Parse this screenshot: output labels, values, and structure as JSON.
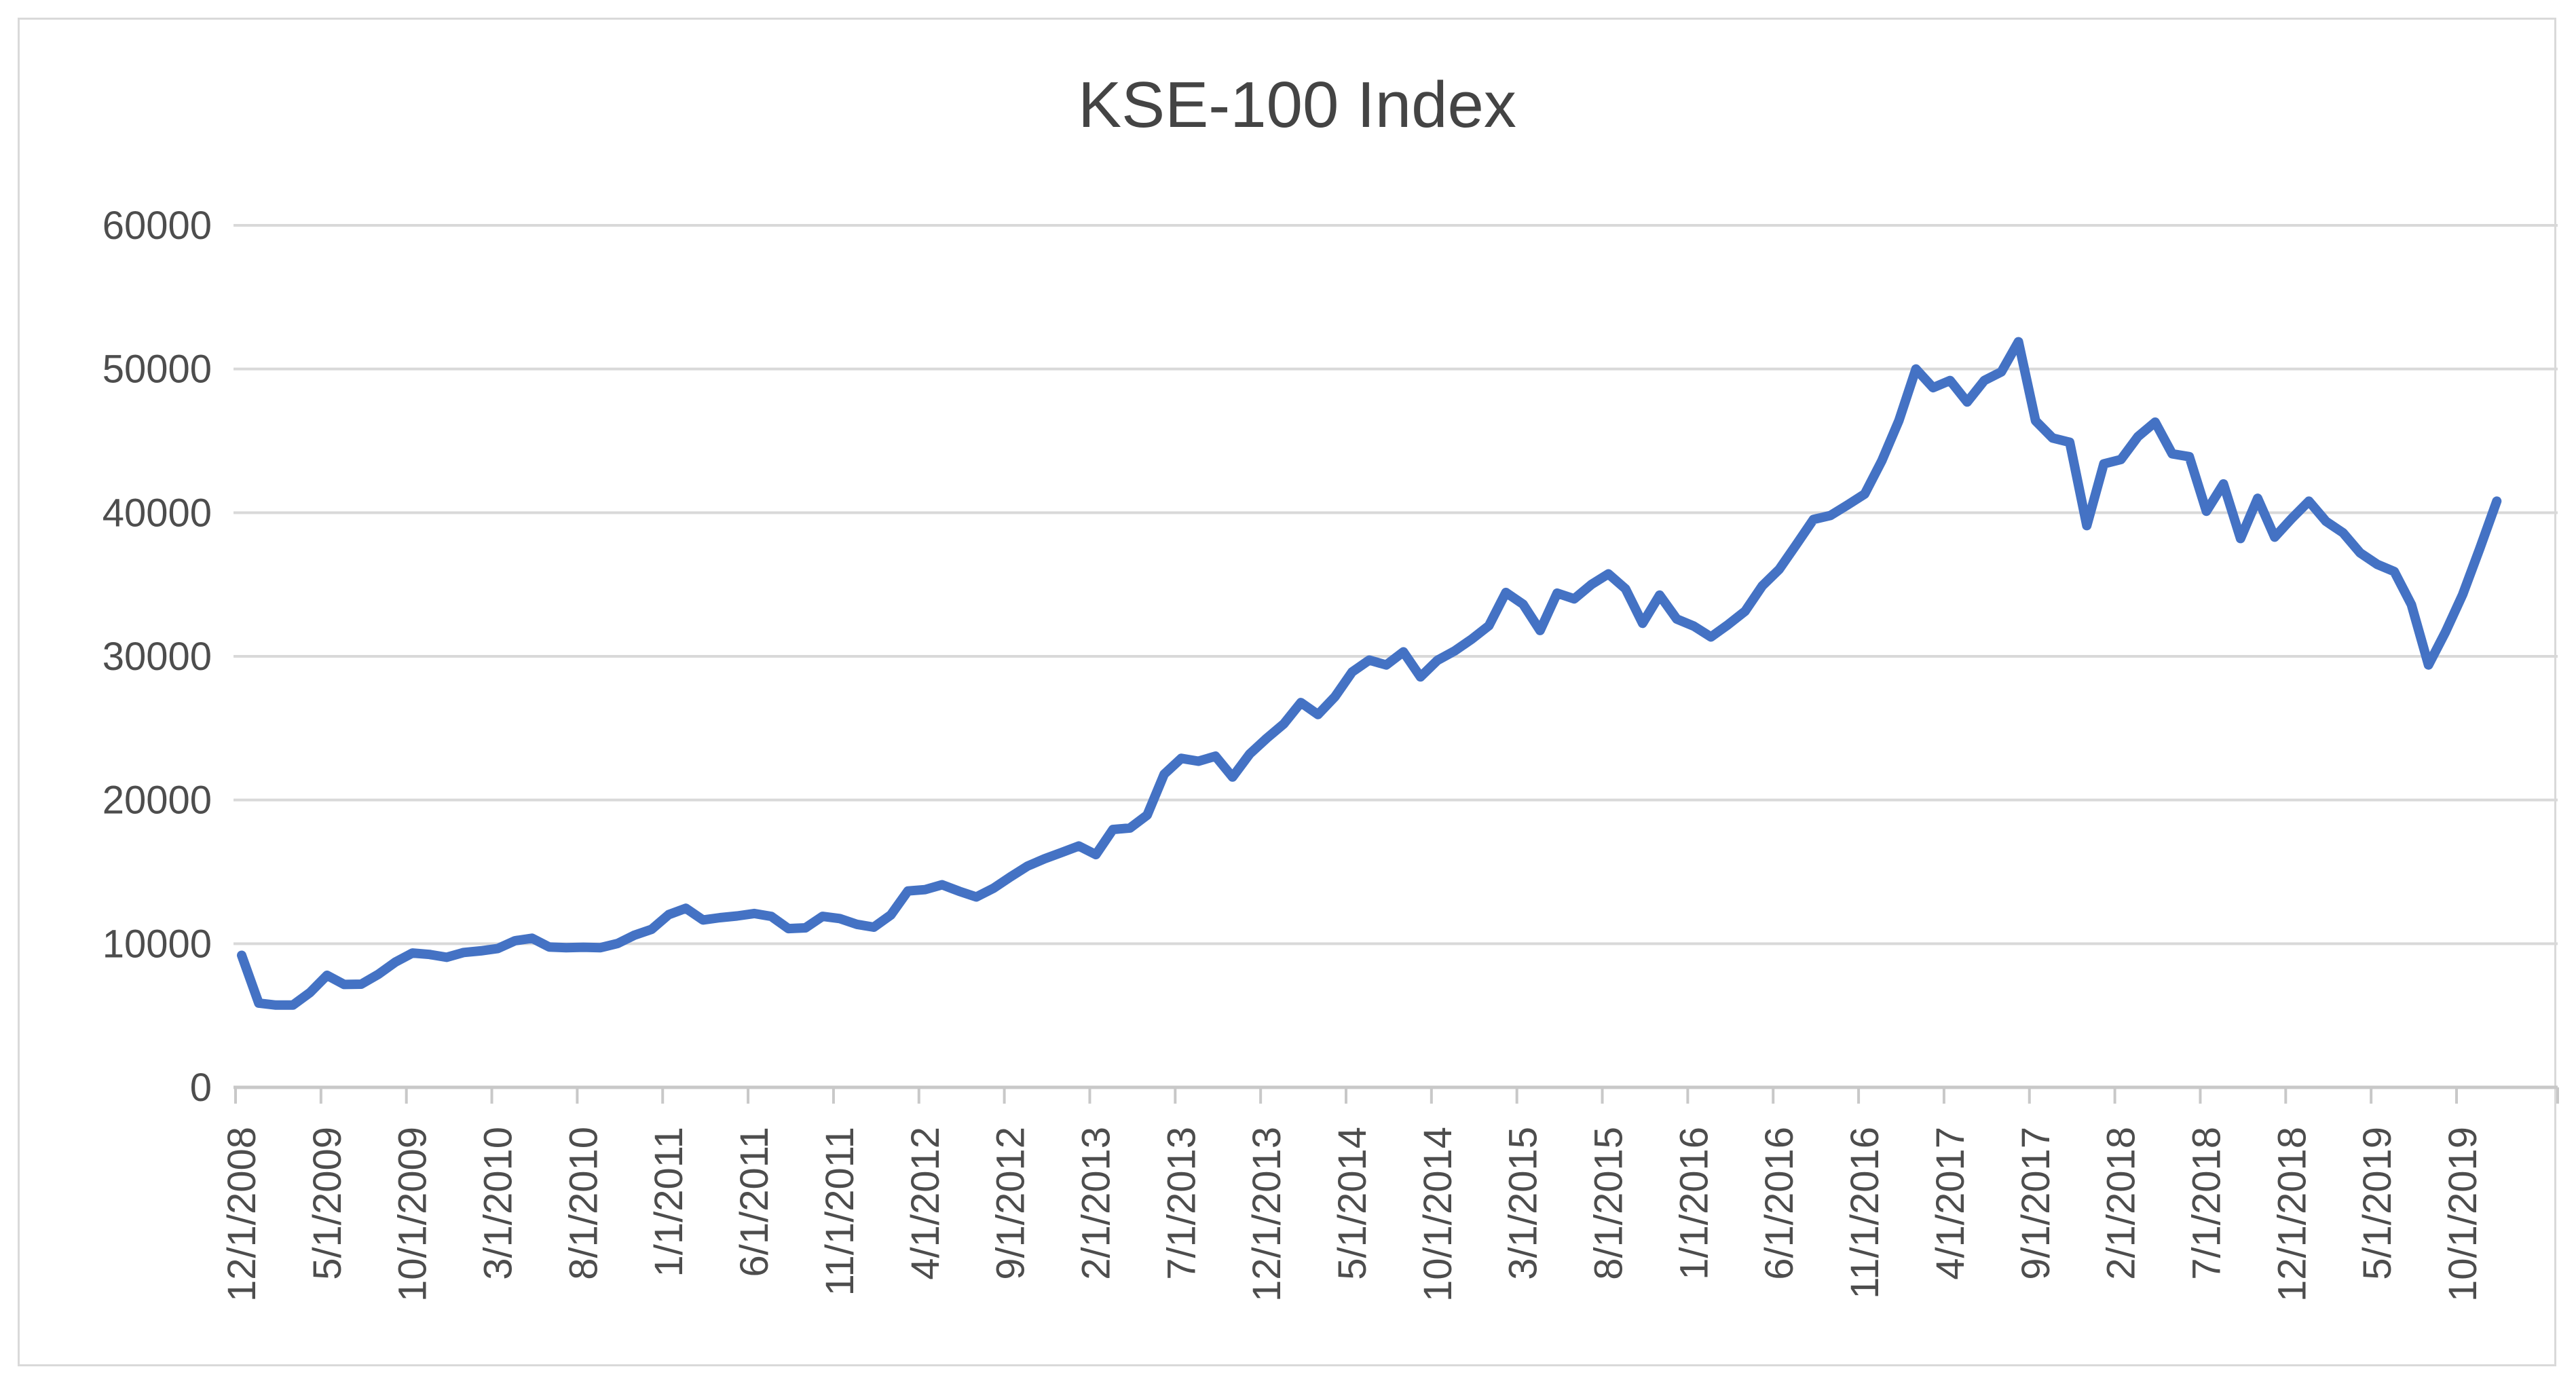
{
  "title": "KSE-100 Index",
  "colors": {
    "line": "#4472C4",
    "gridline": "#d9d9d9",
    "axis_line": "#c8c8c8",
    "tick_mark": "#c8c8c8",
    "text": "#4d4d4d",
    "title_text": "#444444",
    "background": "#ffffff",
    "frame_border": "#d9d9d9"
  },
  "chart_data": {
    "type": "line",
    "title": "KSE-100 Index",
    "xlabel": "",
    "ylabel": "",
    "ylim": [
      0,
      60000
    ],
    "yticks": [
      0,
      10000,
      20000,
      30000,
      40000,
      50000,
      60000
    ],
    "grid": "horizontal",
    "legend": "none",
    "xtick_labels": [
      "12/1/2008",
      "5/1/2009",
      "10/1/2009",
      "3/1/2010",
      "8/1/2010",
      "1/1/2011",
      "6/1/2011",
      "11/1/2011",
      "4/1/2012",
      "9/1/2012",
      "2/1/2013",
      "7/1/2013",
      "12/1/2013",
      "5/1/2014",
      "10/1/2014",
      "3/1/2015",
      "8/1/2015",
      "1/1/2016",
      "6/1/2016",
      "11/1/2016",
      "4/1/2017",
      "9/1/2017",
      "2/1/2018",
      "7/1/2018",
      "12/1/2018",
      "5/1/2019",
      "10/1/2019"
    ],
    "xtick_interval_months": 5,
    "x": [
      "12/1/2008",
      "1/1/2009",
      "2/1/2009",
      "3/1/2009",
      "4/1/2009",
      "5/1/2009",
      "6/1/2009",
      "7/1/2009",
      "8/1/2009",
      "9/1/2009",
      "10/1/2009",
      "11/1/2009",
      "12/1/2009",
      "1/1/2010",
      "2/1/2010",
      "3/1/2010",
      "4/1/2010",
      "5/1/2010",
      "6/1/2010",
      "7/1/2010",
      "8/1/2010",
      "9/1/2010",
      "10/1/2010",
      "11/1/2010",
      "12/1/2010",
      "1/1/2011",
      "2/1/2011",
      "3/1/2011",
      "4/1/2011",
      "5/1/2011",
      "6/1/2011",
      "7/1/2011",
      "8/1/2011",
      "9/1/2011",
      "10/1/2011",
      "11/1/2011",
      "12/1/2011",
      "1/1/2012",
      "2/1/2012",
      "3/1/2012",
      "4/1/2012",
      "5/1/2012",
      "6/1/2012",
      "7/1/2012",
      "8/1/2012",
      "9/1/2012",
      "10/1/2012",
      "11/1/2012",
      "12/1/2012",
      "1/1/2013",
      "2/1/2013",
      "3/1/2013",
      "4/1/2013",
      "5/1/2013",
      "6/1/2013",
      "7/1/2013",
      "8/1/2013",
      "9/1/2013",
      "10/1/2013",
      "11/1/2013",
      "12/1/2013",
      "1/1/2014",
      "2/1/2014",
      "3/1/2014",
      "4/1/2014",
      "5/1/2014",
      "6/1/2014",
      "7/1/2014",
      "8/1/2014",
      "9/1/2014",
      "10/1/2014",
      "11/1/2014",
      "12/1/2014",
      "1/1/2015",
      "2/1/2015",
      "3/1/2015",
      "4/1/2015",
      "5/1/2015",
      "6/1/2015",
      "7/1/2015",
      "8/1/2015",
      "9/1/2015",
      "10/1/2015",
      "11/1/2015",
      "12/1/2015",
      "1/1/2016",
      "2/1/2016",
      "3/1/2016",
      "4/1/2016",
      "5/1/2016",
      "6/1/2016",
      "7/1/2016",
      "8/1/2016",
      "9/1/2016",
      "10/1/2016",
      "11/1/2016",
      "12/1/2016",
      "1/1/2017",
      "2/1/2017",
      "3/1/2017",
      "4/1/2017",
      "5/1/2017",
      "6/1/2017",
      "7/1/2017",
      "8/1/2017",
      "9/1/2017",
      "10/1/2017",
      "11/1/2017",
      "12/1/2017",
      "1/1/2018",
      "2/1/2018",
      "3/1/2018",
      "4/1/2018",
      "5/1/2018",
      "6/1/2018",
      "7/1/2018",
      "8/1/2018",
      "9/1/2018",
      "10/1/2018",
      "11/1/2018",
      "12/1/2018",
      "1/1/2019",
      "2/1/2019",
      "3/1/2019",
      "4/1/2019",
      "5/1/2019",
      "6/1/2019",
      "7/1/2019",
      "8/1/2019",
      "9/1/2019",
      "10/1/2019",
      "11/1/2019",
      "12/1/2019"
    ],
    "values": [
      9187,
      5865,
      5728,
      5727,
      6600,
      7800,
      7162,
      7179,
      7870,
      8720,
      9350,
      9250,
      9050,
      9386,
      9500,
      9665,
      10205,
      10380,
      9770,
      9722,
      9750,
      9725,
      10013,
      10598,
      11005,
      12022,
      12462,
      11649,
      11810,
      11930,
      12100,
      11900,
      11050,
      11100,
      11900,
      11750,
      11350,
      11150,
      12000,
      13666,
      13762,
      14100,
      13650,
      13250,
      13850,
      14650,
      15400,
      15910,
      16350,
      16800,
      16200,
      17950,
      18050,
      18950,
      21800,
      22900,
      22700,
      23050,
      21600,
      23200,
      24300,
      25300,
      26784,
      25950,
      27200,
      28913,
      29738,
      29400,
      30314,
      28568,
      29726,
      30377,
      31198,
      32131,
      34444,
      33632,
      31800,
      34400,
      34000,
      35000,
      35742,
      34700,
      32300,
      34260,
      32600,
      32100,
      31350,
      32200,
      33140,
      34900,
      36060,
      37780,
      39530,
      39810,
      40540,
      41300,
      43600,
      46400,
      50000,
      48700,
      49200,
      47700,
      49200,
      49800,
      51900,
      46400,
      45200,
      44900,
      39100,
      43400,
      43700,
      45300,
      46300,
      44100,
      43900,
      40100,
      42000,
      38200,
      41000,
      38300,
      39600,
      40800,
      39400,
      38600,
      37200,
      36400,
      35900,
      33600,
      29400,
      31700,
      34300,
      37500,
      40800
    ]
  }
}
